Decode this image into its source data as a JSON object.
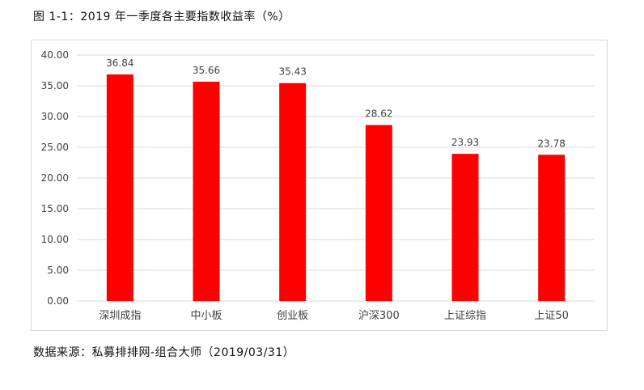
{
  "title": "图 1-1：2019 年一季度各主要指数收益率（%）",
  "source": "数据来源：私募排排网-组合大师（2019/03/31）",
  "colors": {
    "bar": "#ff0000",
    "grid": "#d9d9d9",
    "text": "#404040"
  },
  "chart_data": {
    "type": "bar",
    "categories": [
      "深圳成指",
      "中小板",
      "创业板",
      "沪深300",
      "上证综指",
      "上证50"
    ],
    "values": [
      36.84,
      35.66,
      35.43,
      28.62,
      23.93,
      23.78
    ],
    "data_labels": [
      "36.84",
      "35.66",
      "35.43",
      "28.62",
      "23.93",
      "23.78"
    ],
    "ylim": [
      0,
      40
    ],
    "yticks": [
      "0.00",
      "5.00",
      "10.00",
      "15.00",
      "20.00",
      "25.00",
      "30.00",
      "35.00",
      "40.00"
    ],
    "grid": true,
    "legend": "none"
  }
}
